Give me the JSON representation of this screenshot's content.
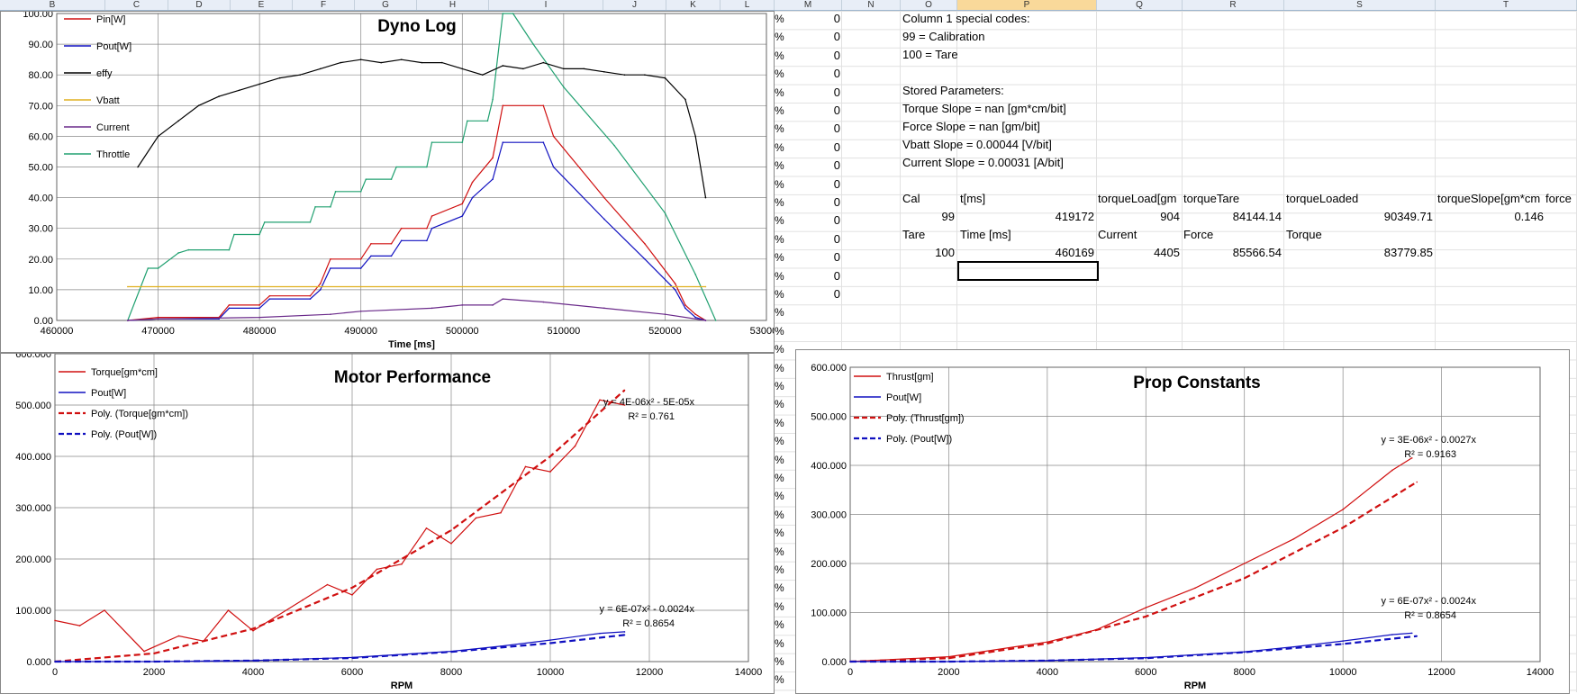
{
  "columns": [
    {
      "label": "B",
      "x": 0,
      "w": 117
    },
    {
      "label": "C",
      "x": 117,
      "w": 70
    },
    {
      "label": "D",
      "x": 187,
      "w": 69
    },
    {
      "label": "E",
      "x": 256,
      "w": 69
    },
    {
      "label": "F",
      "x": 325,
      "w": 69
    },
    {
      "label": "G",
      "x": 394,
      "w": 69
    },
    {
      "label": "H",
      "x": 463,
      "w": 80
    },
    {
      "label": "I",
      "x": 543,
      "w": 127
    },
    {
      "label": "J",
      "x": 670,
      "w": 70
    },
    {
      "label": "K",
      "x": 740,
      "w": 60
    },
    {
      "label": "L",
      "x": 800,
      "w": 60
    },
    {
      "label": "M",
      "x": 860,
      "w": 75
    },
    {
      "label": "N",
      "x": 935,
      "w": 65
    },
    {
      "label": "O",
      "x": 1000,
      "w": 63
    },
    {
      "label": "P",
      "x": 1063,
      "w": 155
    },
    {
      "label": "Q",
      "x": 1218,
      "w": 95
    },
    {
      "label": "R",
      "x": 1313,
      "w": 113
    },
    {
      "label": "S",
      "x": 1426,
      "w": 168
    },
    {
      "label": "T",
      "x": 1594,
      "w": 157
    }
  ],
  "selected_column": "P",
  "col_l_cells": [
    "%",
    "%",
    "%",
    "%",
    "%",
    "%",
    "%",
    "%",
    "%",
    "%",
    "%",
    "%",
    "%",
    "%",
    "%",
    "%",
    "%",
    "%",
    "%",
    "%",
    "%",
    "%",
    "%",
    "%",
    "%",
    "%",
    "%",
    "%",
    "%",
    "%",
    "%",
    "%",
    "%",
    "%",
    "%",
    "%",
    "%"
  ],
  "col_m_cells": [
    "0",
    "0",
    "0",
    "0",
    "0",
    "0",
    "0",
    "0",
    "0",
    "0",
    "0",
    "0",
    "0",
    "0",
    "0",
    "0"
  ],
  "notes": [
    "Column 1 special codes:",
    "99  = Calibration",
    "100 = Tare",
    "",
    "Stored Parameters:",
    "Torque Slope = nan [gm*cm/bit]",
    "Force Slope = nan [gm/bit]",
    "Vbatt Slope = 0.00044 [V/bit]",
    "Current Slope = 0.00031 [A/bit]"
  ],
  "table": {
    "cal_header": [
      "Cal",
      "t[ms]",
      "torqueLoad[gm",
      "torqueTare",
      "torqueLoaded",
      "torqueSlope[gm*cm",
      "force"
    ],
    "cal_values": [
      "99",
      "419172",
      "904",
      "84144.14",
      "90349.71",
      "0.146"
    ],
    "tare_header": [
      "Tare",
      "Time [ms]",
      "Current",
      "Force",
      "Torque"
    ],
    "tare_values": [
      "100",
      "460169",
      "4405",
      "85566.54",
      "83779.85"
    ]
  },
  "chart_data": [
    {
      "type": "line",
      "title": "Dyno Log",
      "xlabel": "Time [ms]",
      "xlim": [
        460000,
        530000
      ],
      "ylim": [
        0,
        100
      ],
      "xticks": [
        "460000",
        "470000",
        "480000",
        "490000",
        "500000",
        "510000",
        "520000",
        "530000"
      ],
      "yticks": [
        "0.00",
        "10.00",
        "20.00",
        "30.00",
        "40.00",
        "50.00",
        "60.00",
        "70.00",
        "80.00",
        "90.00",
        "100.00"
      ],
      "legend": [
        {
          "name": "Pin[W]",
          "color": "#d01010"
        },
        {
          "name": "Pout[W]",
          "color": "#1010c0"
        },
        {
          "name": "effy",
          "color": "#000000"
        },
        {
          "name": "Vbatt",
          "color": "#e0b020"
        },
        {
          "name": "Current",
          "color": "#6a2a8a"
        },
        {
          "name": "Throttle",
          "color": "#20a070"
        }
      ],
      "series": [
        {
          "name": "Throttle",
          "color": "#20a070",
          "x": [
            467000,
            469000,
            470000,
            472000,
            473000,
            477000,
            477500,
            480000,
            480500,
            485000,
            485500,
            487000,
            487500,
            490000,
            490500,
            493000,
            493500,
            496500,
            497000,
            500000,
            500500,
            502500,
            503000,
            504000,
            505000,
            507000,
            510000,
            515000,
            520000,
            523000,
            525000
          ],
          "y": [
            0,
            17,
            17,
            22,
            23,
            23,
            28,
            28,
            32,
            32,
            37,
            37,
            42,
            42,
            46,
            46,
            50,
            50,
            58,
            58,
            65,
            65,
            72,
            100,
            100,
            90,
            76,
            57,
            35,
            15,
            0
          ]
        },
        {
          "name": "Pin[W]",
          "color": "#d01010",
          "x": [
            467000,
            470000,
            476000,
            477000,
            480000,
            481000,
            485000,
            486000,
            487000,
            490000,
            491000,
            493000,
            494000,
            496500,
            497000,
            500000,
            501000,
            503000,
            504000,
            508000,
            509000,
            514000,
            518000,
            521000,
            522000,
            523000,
            524000
          ],
          "y": [
            0,
            1,
            1,
            5,
            5,
            8,
            8,
            12,
            20,
            20,
            25,
            25,
            30,
            30,
            34,
            38,
            45,
            53,
            70,
            70,
            60,
            40,
            25,
            12,
            5,
            2,
            0
          ]
        },
        {
          "name": "Pout[W]",
          "color": "#1010c0",
          "x": [
            467000,
            470000,
            476000,
            477000,
            480000,
            481000,
            485000,
            486000,
            487000,
            490000,
            491000,
            493000,
            494000,
            496500,
            497000,
            500000,
            501000,
            503000,
            504000,
            508000,
            509000,
            514000,
            518000,
            521000,
            522000,
            523000,
            524000
          ],
          "y": [
            0,
            0.5,
            0.5,
            4,
            4,
            7,
            7,
            10,
            17,
            17,
            21,
            21,
            26,
            26,
            30,
            34,
            40,
            46,
            58,
            58,
            50,
            33,
            20,
            10,
            4,
            1,
            0
          ]
        },
        {
          "name": "Vbatt",
          "color": "#e0b020",
          "x": [
            467000,
            470000,
            490000,
            500000,
            510000,
            520000,
            524000
          ],
          "y": [
            11,
            11,
            11,
            11,
            11,
            11,
            11
          ]
        },
        {
          "name": "Current",
          "color": "#6a2a8a",
          "x": [
            467000,
            470000,
            480000,
            487000,
            490000,
            497000,
            500000,
            503000,
            504000,
            508000,
            514000,
            520000,
            524000
          ],
          "y": [
            0,
            0.5,
            1,
            2,
            3,
            4,
            5,
            5,
            7,
            6,
            4,
            2,
            0
          ]
        },
        {
          "name": "effy",
          "color": "#000000",
          "x": [
            468000,
            470000,
            472000,
            474000,
            476000,
            478000,
            480000,
            482000,
            484000,
            486000,
            488000,
            490000,
            492000,
            494000,
            496000,
            498000,
            500000,
            502000,
            504000,
            506000,
            508000,
            510000,
            512000,
            514000,
            516000,
            518000,
            520000,
            522000,
            523000,
            524000
          ],
          "y": [
            50,
            60,
            65,
            70,
            73,
            75,
            77,
            79,
            80,
            82,
            84,
            85,
            84,
            85,
            84,
            84,
            82,
            80,
            83,
            82,
            84,
            82,
            82,
            81,
            80,
            80,
            79,
            72,
            60,
            40
          ]
        }
      ]
    },
    {
      "type": "line",
      "title": "Motor Performance",
      "xlabel": "RPM",
      "xlim": [
        0,
        14000
      ],
      "ylim": [
        0,
        600
      ],
      "xticks": [
        "0",
        "2000",
        "4000",
        "6000",
        "8000",
        "10000",
        "12000",
        "14000"
      ],
      "yticks": [
        "0.000",
        "100.000",
        "200.000",
        "300.000",
        "400.000",
        "500.000",
        "600.000"
      ],
      "legend": [
        {
          "name": "Torque[gm*cm]",
          "color": "#d01010",
          "dash": false
        },
        {
          "name": "Pout[W]",
          "color": "#1010c0",
          "dash": false
        },
        {
          "name": "Poly. (Torque[gm*cm])",
          "color": "#d01010",
          "dash": true
        },
        {
          "name": "Poly. (Pout[W])",
          "color": "#1010c0",
          "dash": true
        }
      ],
      "annotations": [
        {
          "line1": "y = 4E-06x² - 5E-05x",
          "line2": "R² = 0.761"
        },
        {
          "line1": "y = 6E-07x² - 0.0024x",
          "line2": "R² = 0.8654"
        }
      ],
      "series": [
        {
          "name": "Torque[gm*cm]",
          "color": "#d01010",
          "x": [
            0,
            500,
            1000,
            1800,
            2500,
            3000,
            3500,
            4000,
            4500,
            5000,
            5500,
            6000,
            6500,
            7000,
            7500,
            8000,
            8500,
            9000,
            9500,
            10000,
            10500,
            11000,
            11500
          ],
          "y": [
            80,
            70,
            100,
            20,
            50,
            40,
            100,
            60,
            90,
            120,
            150,
            130,
            180,
            190,
            260,
            230,
            280,
            290,
            380,
            370,
            420,
            510,
            500
          ]
        },
        {
          "name": "Poly. (Torque[gm*cm])",
          "color": "#d01010",
          "dash": true,
          "x": [
            0,
            2000,
            4000,
            6000,
            8000,
            10000,
            11500
          ],
          "y": [
            0,
            16,
            64,
            144,
            256,
            400,
            529
          ]
        },
        {
          "name": "Pout[W]",
          "color": "#1010c0",
          "x": [
            0,
            2000,
            4000,
            6000,
            8000,
            9000,
            10000,
            11000,
            11500
          ],
          "y": [
            0,
            0,
            2,
            8,
            20,
            30,
            42,
            55,
            58
          ]
        },
        {
          "name": "Poly. (Pout[W])",
          "color": "#1010c0",
          "dash": true,
          "x": [
            0,
            2000,
            4000,
            6000,
            8000,
            10000,
            11500
          ],
          "y": [
            0,
            0,
            2,
            7,
            19,
            36,
            52
          ]
        }
      ]
    },
    {
      "type": "line",
      "title": "Prop Constants",
      "xlabel": "RPM",
      "xlim": [
        0,
        14000
      ],
      "ylim": [
        0,
        600
      ],
      "xticks": [
        "0",
        "2000",
        "4000",
        "6000",
        "8000",
        "10000",
        "12000",
        "14000"
      ],
      "yticks": [
        "0.000",
        "100.000",
        "200.000",
        "300.000",
        "400.000",
        "500.000",
        "600.000"
      ],
      "legend": [
        {
          "name": "Thrust[gm]",
          "color": "#d01010",
          "dash": false
        },
        {
          "name": "Pout[W]",
          "color": "#1010c0",
          "dash": false
        },
        {
          "name": "Poly. (Thrust[gm])",
          "color": "#d01010",
          "dash": true
        },
        {
          "name": "Poly. (Pout[W])",
          "color": "#1010c0",
          "dash": true
        }
      ],
      "annotations": [
        {
          "line1": "y = 3E-06x² - 0.0027x",
          "line2": "R² = 0.9163"
        },
        {
          "line1": "y = 6E-07x² - 0.0024x",
          "line2": "R² = 0.8654"
        }
      ],
      "series": [
        {
          "name": "Thrust[gm]",
          "color": "#d01010",
          "x": [
            0,
            2000,
            4000,
            5000,
            6000,
            7000,
            8000,
            9000,
            10000,
            11000,
            11400
          ],
          "y": [
            0,
            10,
            40,
            65,
            110,
            150,
            200,
            250,
            310,
            390,
            415
          ]
        },
        {
          "name": "Poly. (Thrust[gm])",
          "color": "#d01010",
          "dash": true,
          "x": [
            0,
            2000,
            4000,
            6000,
            8000,
            10000,
            11500
          ],
          "y": [
            0,
            7,
            37,
            92,
            170,
            273,
            366
          ]
        },
        {
          "name": "Pout[W]",
          "color": "#1010c0",
          "x": [
            0,
            2000,
            4000,
            6000,
            8000,
            9000,
            10000,
            11000,
            11400
          ],
          "y": [
            0,
            0,
            2,
            8,
            20,
            30,
            42,
            55,
            58
          ]
        },
        {
          "name": "Poly. (Pout[W])",
          "color": "#1010c0",
          "dash": true,
          "x": [
            0,
            2000,
            4000,
            6000,
            8000,
            10000,
            11500
          ],
          "y": [
            0,
            0,
            2,
            7,
            19,
            36,
            52
          ]
        }
      ]
    }
  ]
}
